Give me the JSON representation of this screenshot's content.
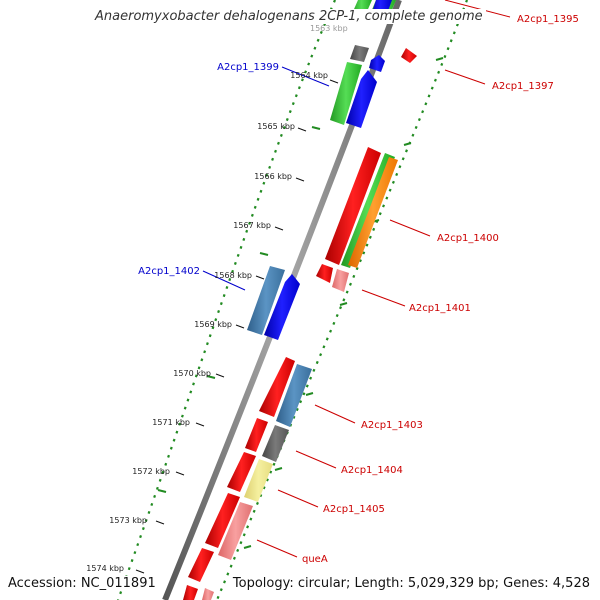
{
  "header": {
    "title": "Anaeromyxobacter dehalogenans 2CP-1, complete genome",
    "top_partial_label": "1563 kbp"
  },
  "footer": {
    "accession": "Accession: NC_011891",
    "summary": "Topology: circular; Length: 5,029,329 bp; Genes: 4,528"
  },
  "scale_labels": [
    "1564 kbp",
    "1565 kbp",
    "1566 kbp",
    "1567 kbp",
    "1568 kbp",
    "1569 kbp",
    "1570 kbp",
    "1571 kbp",
    "1572 kbp",
    "1573 kbp",
    "1574 kbp"
  ],
  "gene_labels": {
    "forward": [
      "A2cp1_1395",
      "A2cp1_1397",
      "A2cp1_1400",
      "A2cp1_1401",
      "A2cp1_1403",
      "A2cp1_1404",
      "A2cp1_1405",
      "queA"
    ],
    "reverse": [
      "A2cp1_1399",
      "A2cp1_1402"
    ]
  },
  "colors": {
    "backbone": "#888888",
    "gc_dots": "#228b22",
    "forward_label": "#cc0000",
    "reverse_label": "#0000cc",
    "cds_red": "#ee0000",
    "cds_blue": "#0000ee",
    "cds_green": "#33cc33",
    "cds_steelblue": "#4682b4",
    "cds_orange": "#ff8800",
    "cds_pink": "#f08080",
    "cds_gray": "#666666",
    "cds_khaki": "#eee68c"
  }
}
